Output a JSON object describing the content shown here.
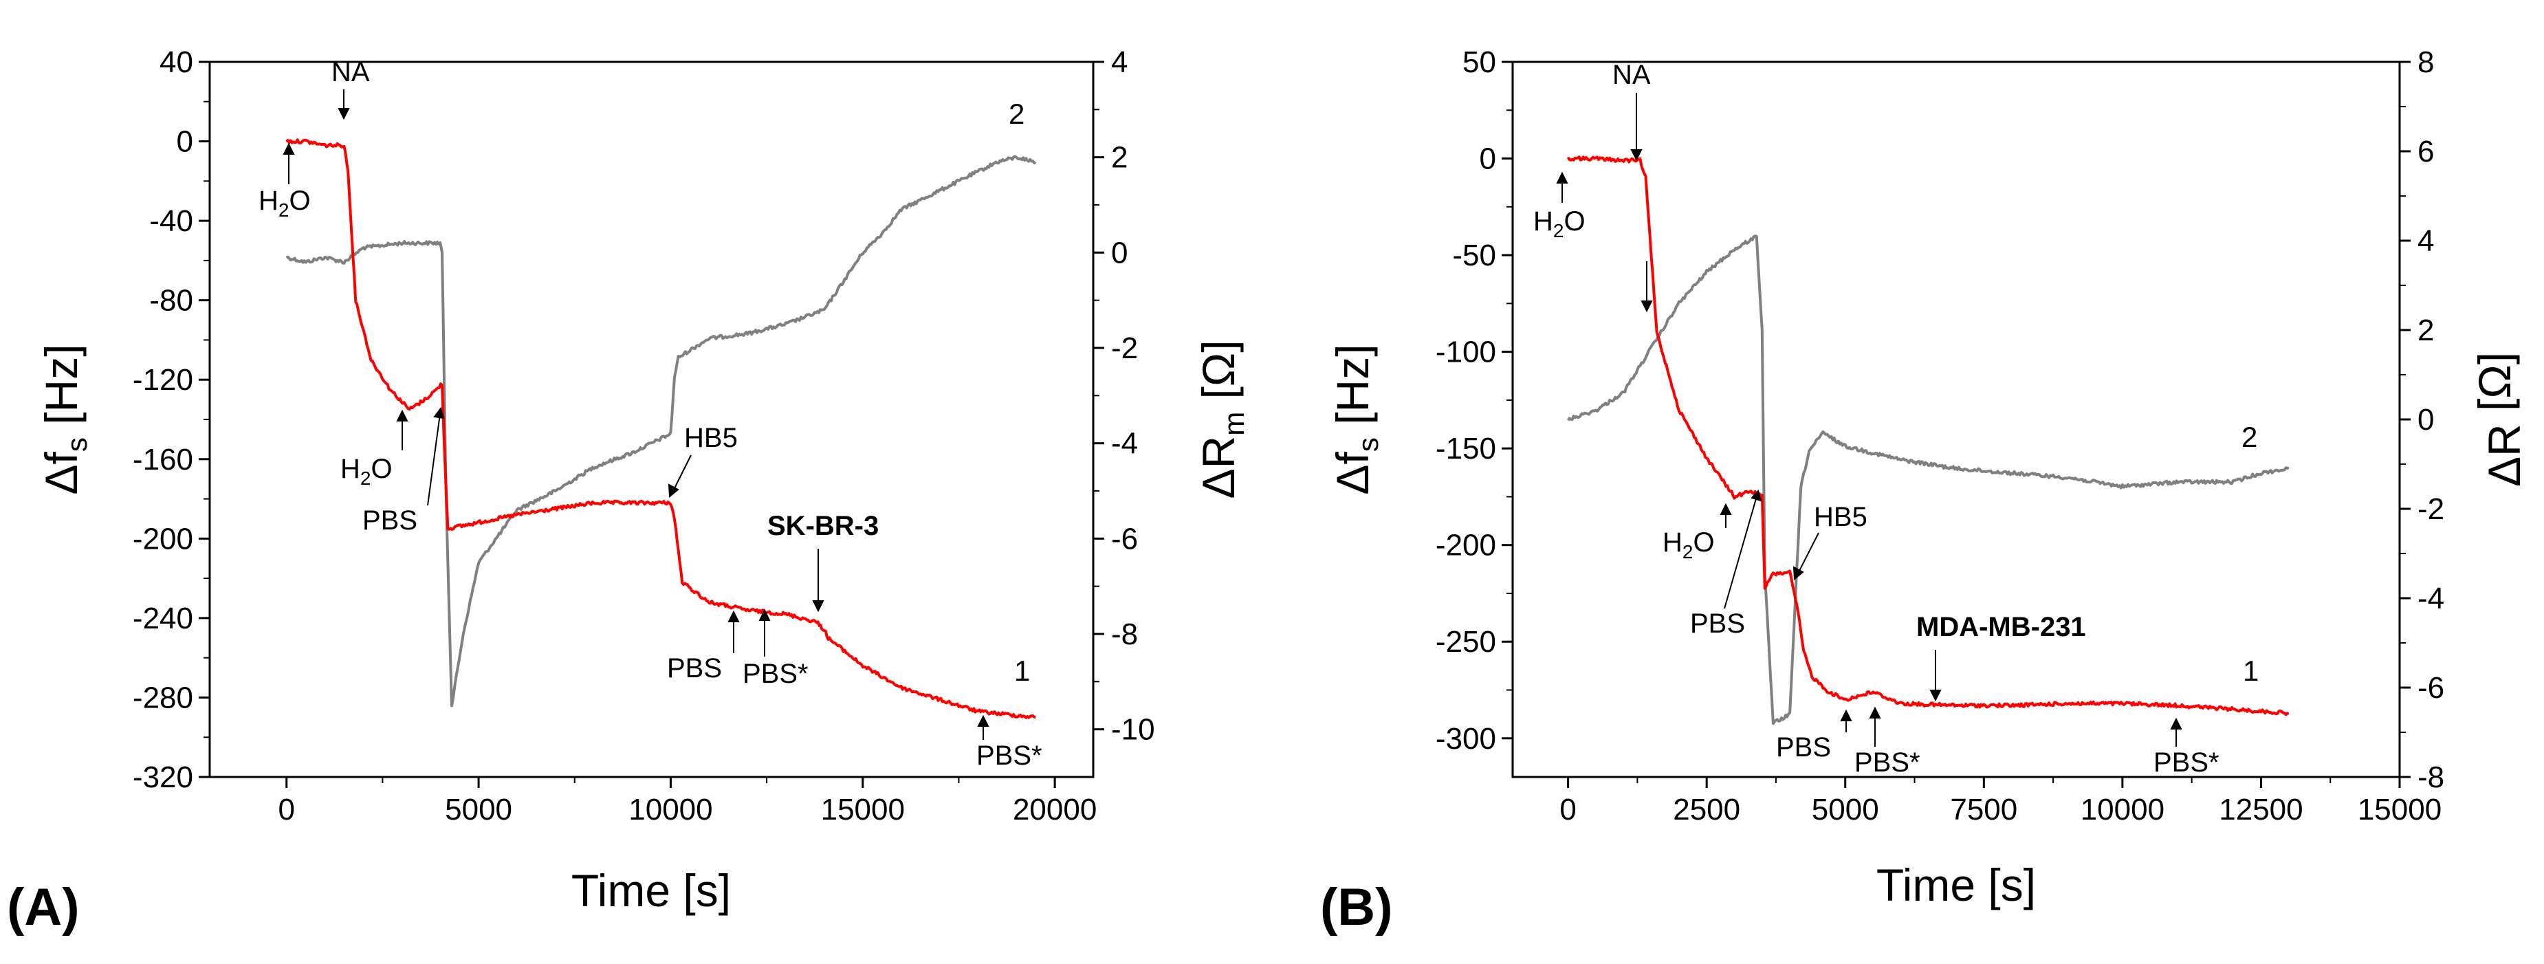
{
  "figure": {
    "panel_labels": [
      "(A)",
      "(B)"
    ],
    "colors": {
      "series_freq": "#ff0000",
      "series_resistance": "#808080",
      "axis": "#000000"
    }
  },
  "chart_data": [
    {
      "type": "line",
      "panel": "(A)",
      "xlabel": "Time [s]",
      "ylabel_left": {
        "main": "Δf",
        "sub": "s",
        "unit": " [Hz]"
      },
      "ylabel_right": {
        "main": "ΔR",
        "sub": "m",
        "unit": " [Ω]"
      },
      "xlim": [
        -2000,
        21000
      ],
      "ylim_left": [
        -320,
        40
      ],
      "ylim_right": [
        -11,
        4
      ],
      "xticks": [
        0,
        5000,
        10000,
        15000,
        20000
      ],
      "xtick_labels": [
        "0",
        "5000",
        "10000",
        "15000",
        "20000"
      ],
      "yticks_left": [
        40,
        0,
        -40,
        -80,
        -120,
        -160,
        -200,
        -240,
        -280,
        -320
      ],
      "ytick_labels_left": [
        "40",
        "0",
        "-40",
        "-80",
        "-120",
        "-160",
        "-200",
        "-240",
        "-280",
        "-320"
      ],
      "yticks_right": [
        4,
        2,
        0,
        -2,
        -4,
        -6,
        -8,
        -10
      ],
      "ytick_labels_right": [
        "4",
        "2",
        "0",
        "-2",
        "-4",
        "-6",
        "-8",
        "-10"
      ],
      "series": [
        {
          "name": "1",
          "axis": "left",
          "color": "#ff0000",
          "x": [
            0,
            500,
            1000,
            1500,
            1600,
            1800,
            2200,
            2700,
            3200,
            3600,
            3900,
            4050,
            4100,
            4200,
            6000,
            8000,
            10000,
            10100,
            10300,
            11000,
            12000,
            13000,
            13800,
            14000,
            14100,
            15000,
            16000,
            17000,
            18000,
            19000,
            19500
          ],
          "y": [
            0,
            0,
            -2,
            -2,
            -15,
            -80,
            -110,
            -125,
            -135,
            -130,
            -125,
            -122,
            -150,
            -195,
            -188,
            -182,
            -182,
            -190,
            -222,
            -232,
            -236,
            -238,
            -242,
            -246,
            -250,
            -264,
            -275,
            -281,
            -287,
            -289,
            -290
          ]
        },
        {
          "name": "2",
          "axis": "right",
          "color": "#808080",
          "x": [
            0,
            500,
            1000,
            1500,
            2000,
            3000,
            4000,
            4050,
            4150,
            4300,
            4600,
            5000,
            6000,
            7000,
            8000,
            9000,
            10000,
            10100,
            10200,
            11000,
            12000,
            13000,
            14000,
            15000,
            15500,
            16000,
            17000,
            18000,
            18500,
            19000,
            19500
          ],
          "y": [
            -0.1,
            -0.2,
            -0.1,
            -0.2,
            0.1,
            0.2,
            0.2,
            0,
            -5,
            -9.5,
            -8.0,
            -6.5,
            -5.4,
            -5.0,
            -4.5,
            -4.2,
            -3.8,
            -2.6,
            -2.2,
            -1.8,
            -1.7,
            -1.5,
            -1.2,
            0,
            0.4,
            0.9,
            1.3,
            1.7,
            1.9,
            2.0,
            1.9
          ]
        }
      ],
      "series_labels": [
        "1",
        "2"
      ],
      "annotations": [
        "NA",
        "H2O",
        "H2O",
        "PBS",
        "HB5",
        "SK-BR-3",
        "PBS",
        "PBS*",
        "PBS*"
      ]
    },
    {
      "type": "line",
      "panel": "(B)",
      "xlabel": "Time [s]",
      "ylabel_left": {
        "main": "Δf",
        "sub": "s",
        "unit": " [Hz]"
      },
      "ylabel_right": {
        "main": "ΔR",
        "sub": "",
        "unit": "   [Ω]"
      },
      "xlim": [
        -1000,
        15000
      ],
      "ylim_left": [
        -320,
        50
      ],
      "ylim_right": [
        -8,
        8
      ],
      "xticks": [
        0,
        2500,
        5000,
        7500,
        10000,
        12500,
        15000
      ],
      "xtick_labels": [
        "0",
        "2500",
        "5000",
        "7500",
        "10000",
        "12500",
        "15000"
      ],
      "yticks_left": [
        50,
        0,
        -50,
        -100,
        -150,
        -200,
        -250,
        -300
      ],
      "ytick_labels_left": [
        "50",
        "0",
        "-50",
        "-100",
        "-150",
        "-200",
        "-250",
        "-300"
      ],
      "yticks_right": [
        8,
        6,
        4,
        2,
        0,
        -2,
        -4,
        -6,
        -8
      ],
      "ytick_labels_right": [
        "8",
        "6",
        "4",
        "2",
        "0",
        "-2",
        "-4",
        "-6",
        "-8"
      ],
      "series": [
        {
          "name": "1",
          "axis": "left",
          "color": "#ff0000",
          "x": [
            0,
            500,
            1000,
            1300,
            1400,
            1600,
            2000,
            2500,
            3000,
            3300,
            3500,
            3550,
            3700,
            4000,
            4150,
            4250,
            4400,
            4700,
            5000,
            5500,
            6000,
            7000,
            8000,
            9000,
            10000,
            11000,
            12000,
            12500,
            13000
          ],
          "y": [
            0,
            0,
            -1,
            -1,
            -10,
            -90,
            -130,
            -155,
            -175,
            -172,
            -175,
            -222,
            -215,
            -214,
            -235,
            -255,
            -268,
            -276,
            -280,
            -276,
            -282,
            -283,
            -283,
            -282,
            -282,
            -283,
            -285,
            -286,
            -287
          ]
        },
        {
          "name": "2",
          "axis": "right",
          "color": "#808080",
          "x": [
            0,
            500,
            1000,
            1500,
            2000,
            2500,
            3000,
            3400,
            3500,
            3550,
            3700,
            4000,
            4100,
            4200,
            4350,
            4600,
            5000,
            6000,
            7000,
            8000,
            9000,
            10000,
            11000,
            12000,
            12500,
            13000
          ],
          "y": [
            0,
            0.2,
            0.6,
            1.6,
            2.6,
            3.3,
            3.8,
            4.1,
            2.0,
            -3.5,
            -6.8,
            -6.6,
            -4.0,
            -1.5,
            -0.7,
            -0.3,
            -0.6,
            -0.9,
            -1.1,
            -1.2,
            -1.3,
            -1.5,
            -1.4,
            -1.4,
            -1.2,
            -1.1
          ]
        }
      ],
      "series_labels": [
        "1",
        "2"
      ],
      "annotations": [
        "NA",
        "H2O",
        "H2O",
        "PBS",
        "HB5",
        "MDA-MB-231",
        "PBS",
        "PBS*",
        "PBS*"
      ]
    }
  ]
}
